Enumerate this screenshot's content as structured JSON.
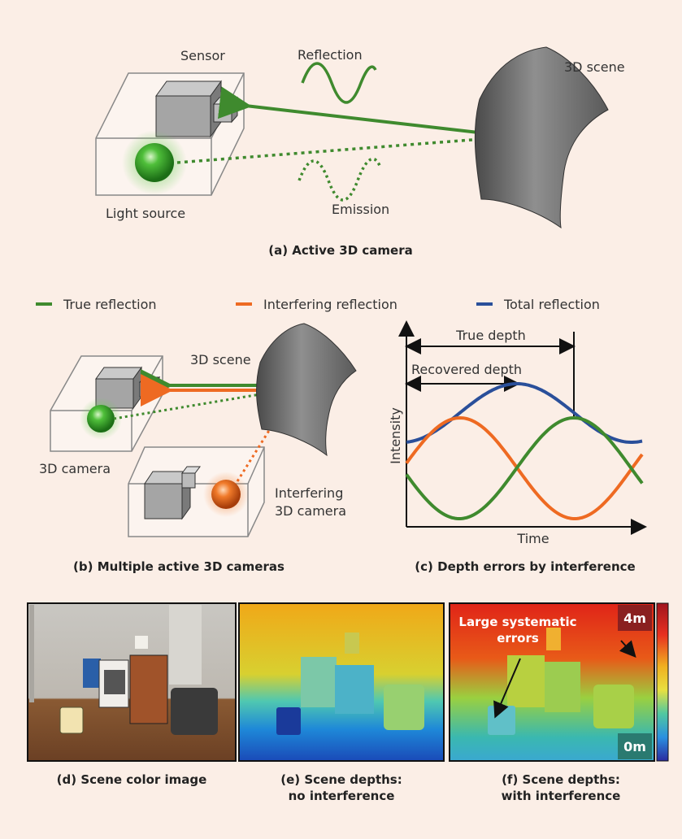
{
  "panel_a": {
    "sensor": "Sensor",
    "reflection": "Reflection",
    "scene": "3D scene",
    "light_source": "Light source",
    "emission": "Emission",
    "caption": "(a) Active 3D camera"
  },
  "legend": {
    "true_reflection": "True reflection",
    "interfering_reflection": "Interfering reflection",
    "total_reflection": "Total reflection"
  },
  "panel_b": {
    "scene": "3D scene",
    "camera": "3D camera",
    "interfering_line1": "Interfering",
    "interfering_line2": "3D camera",
    "caption": "(b) Multiple active 3D cameras"
  },
  "panel_c": {
    "true_depth": "True depth",
    "recovered_depth": "Recovered depth",
    "ylabel": "Intensity",
    "xlabel": "Time",
    "caption": "(c) Depth errors by interference"
  },
  "panel_d": {
    "caption": "(d) Scene color image"
  },
  "panel_e": {
    "caption_line1": "(e) Scene depths:",
    "caption_line2": "no interference"
  },
  "panel_f": {
    "annotation_line1": "Large systematic",
    "annotation_line2": "errors",
    "scale_max": "4m",
    "scale_min": "0m",
    "caption_line1": "(f) Scene depths:",
    "caption_line2": "with interference"
  },
  "colors": {
    "true": "#3f8a2e",
    "interfering": "#ee6a22",
    "total": "#2a4f9a",
    "background": "#fbeee6"
  }
}
